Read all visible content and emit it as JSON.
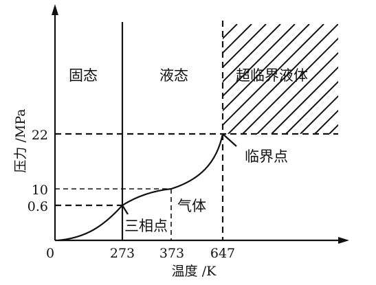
{
  "axes": {
    "y_label": "压力 /MPa",
    "x_label": "温度 /K",
    "origin_label": "0",
    "y_ticks": [
      "0.6",
      "10",
      "22"
    ],
    "x_ticks": [
      "273",
      "373",
      "647"
    ]
  },
  "regions": {
    "solid": "固态",
    "liquid": "液态",
    "gas": "气体",
    "supercritical": "超临界液体"
  },
  "points": {
    "triple_point": "三相点",
    "critical_point": "临界点"
  },
  "colors": {
    "ink": "#111111",
    "background": "#ffffff"
  }
}
